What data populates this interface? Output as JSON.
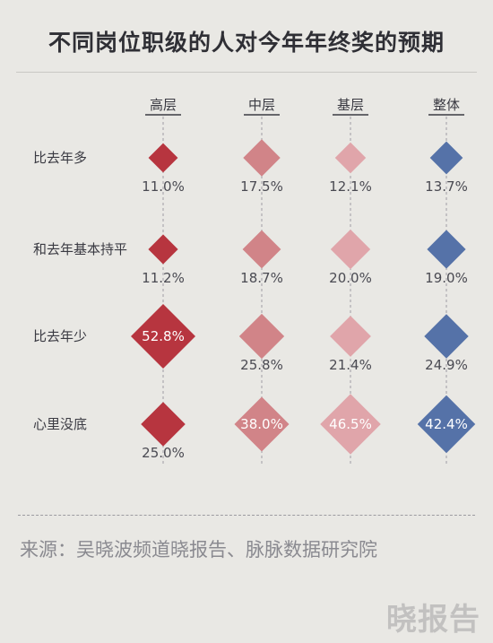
{
  "title": "不同岗位职级的人对今年年终奖的预期",
  "source": "来源：吴晓波频道晓报告、脉脉数据研究院",
  "logo_text": "晓报告",
  "colors": {
    "background": "#e9e8e4",
    "senior": "#b7353f",
    "middle": "#d18488",
    "junior": "#e0a5aa",
    "overall": "#5572a8"
  },
  "chart_data": {
    "type": "bubble-matrix",
    "marker": "diamond",
    "title": "不同岗位职级的人对今年年终奖的预期",
    "columns": [
      "高层",
      "中层",
      "基层",
      "整体"
    ],
    "rows": [
      "比去年多",
      "和去年基本持平",
      "比去年少",
      "心里没底"
    ],
    "unit": "%",
    "values": [
      [
        11.0,
        17.5,
        12.1,
        13.7
      ],
      [
        11.2,
        18.7,
        20.0,
        19.0
      ],
      [
        52.8,
        25.8,
        21.4,
        24.9
      ],
      [
        25.0,
        38.0,
        46.5,
        42.4
      ]
    ],
    "labels": [
      [
        "11.0%",
        "17.5%",
        "12.1%",
        "13.7%"
      ],
      [
        "11.2%",
        "18.7%",
        "20.0%",
        "19.0%"
      ],
      [
        "52.8%",
        "25.8%",
        "21.4%",
        "24.9%"
      ],
      [
        "25.0%",
        "38.0%",
        "46.5%",
        "42.4%"
      ]
    ]
  }
}
